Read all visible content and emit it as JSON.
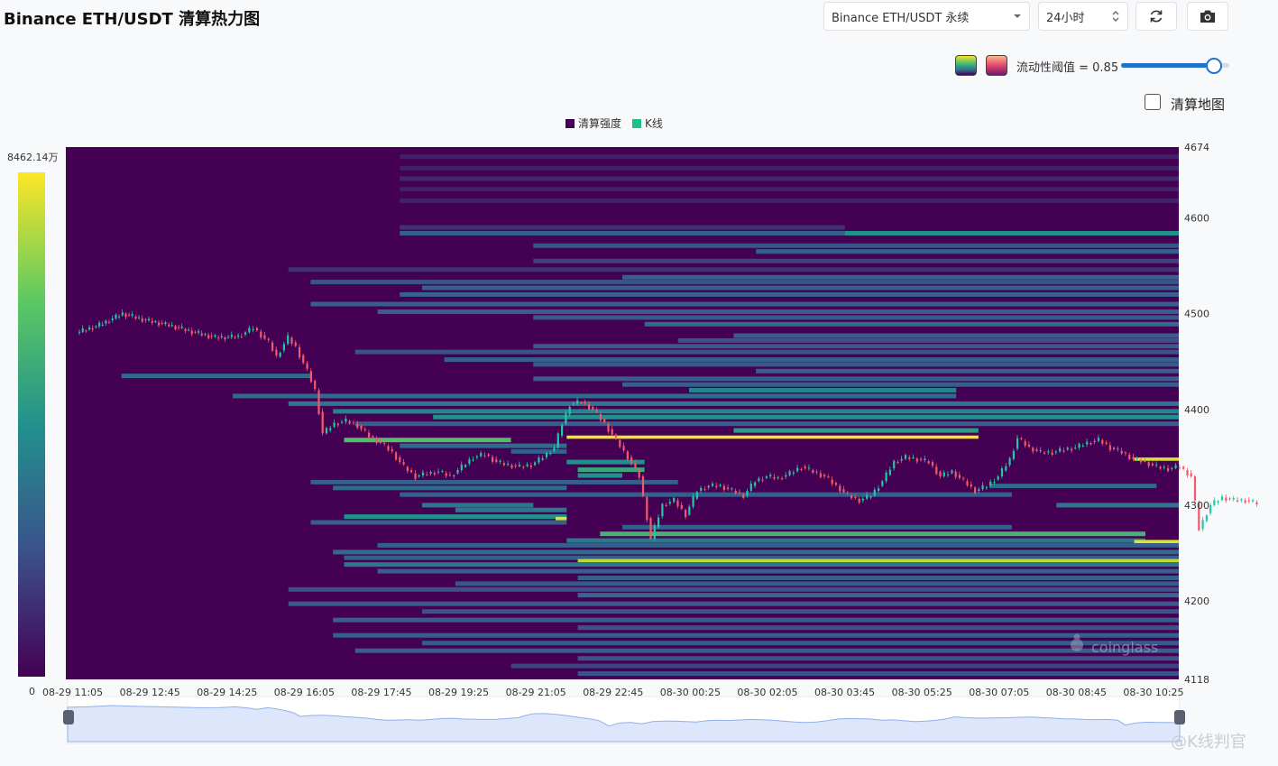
{
  "header": {
    "title": "Binance ETH/USDT 清算热力图"
  },
  "controls": {
    "symbol": "Binance ETH/USDT 永续",
    "period": "24小时",
    "refresh_icon": "refresh-icon",
    "camera_icon": "camera-icon",
    "palette_icons": [
      "viridis-palette-icon",
      "magma-palette-icon"
    ],
    "threshold_label": "流动性阈值 = 0.85",
    "threshold_value": 0.85,
    "threshold_min": 0,
    "threshold_max": 1,
    "liq_map_label": "清算地图",
    "liq_map_checked": false
  },
  "watermark": {
    "text": "coinglass"
  },
  "corner_watermark": {
    "text": "@K线判官"
  },
  "colors": {
    "background": "#440154",
    "candle_up": "#26c6a6",
    "candle_down": "#ef5b6b",
    "navigator_fill": "#dde6fb",
    "navigator_line": "#8fb1ec"
  },
  "chart_data": {
    "type": "heatmap",
    "legend": [
      "清算强度",
      "K线"
    ],
    "colorbar": {
      "max_label": "8462.14万",
      "min_label": "0"
    },
    "y_axis": {
      "ticks": [
        4674,
        4600,
        4500,
        4400,
        4300,
        4200,
        4118
      ],
      "min": 4118,
      "max": 4674
    },
    "x_axis": {
      "ticks": [
        "08-29 11:05",
        "08-29 12:45",
        "08-29 14:25",
        "08-29 16:05",
        "08-29 17:45",
        "08-29 19:25",
        "08-29 21:05",
        "08-29 22:45",
        "08-30 00:25",
        "08-30 02:05",
        "08-30 03:45",
        "08-30 05:25",
        "08-30 07:05",
        "08-30 08:45",
        "08-30 10:25"
      ]
    },
    "price_path": [
      [
        0,
        4480
      ],
      [
        0.3,
        4488
      ],
      [
        0.6,
        4500
      ],
      [
        0.9,
        4493
      ],
      [
        1.2,
        4488
      ],
      [
        1.5,
        4481
      ],
      [
        1.8,
        4475
      ],
      [
        2.1,
        4476
      ],
      [
        2.3,
        4485
      ],
      [
        2.5,
        4470
      ],
      [
        2.6,
        4455
      ],
      [
        2.75,
        4475
      ],
      [
        2.85,
        4465
      ],
      [
        3.0,
        4440
      ],
      [
        3.1,
        4420
      ],
      [
        3.2,
        4375
      ],
      [
        3.35,
        4385
      ],
      [
        3.5,
        4388
      ],
      [
        3.65,
        4383
      ],
      [
        3.8,
        4372
      ],
      [
        3.95,
        4365
      ],
      [
        4.1,
        4355
      ],
      [
        4.25,
        4340
      ],
      [
        4.4,
        4330
      ],
      [
        4.55,
        4333
      ],
      [
        4.7,
        4335
      ],
      [
        4.85,
        4330
      ],
      [
        5.0,
        4340
      ],
      [
        5.15,
        4350
      ],
      [
        5.3,
        4353
      ],
      [
        5.45,
        4345
      ],
      [
        5.6,
        4342
      ],
      [
        5.75,
        4340
      ],
      [
        5.9,
        4342
      ],
      [
        6.05,
        4350
      ],
      [
        6.2,
        4360
      ],
      [
        6.3,
        4385
      ],
      [
        6.4,
        4405
      ],
      [
        6.55,
        4408
      ],
      [
        6.7,
        4400
      ],
      [
        6.85,
        4385
      ],
      [
        7.0,
        4368
      ],
      [
        7.15,
        4350
      ],
      [
        7.3,
        4330
      ],
      [
        7.45,
        4265
      ],
      [
        7.6,
        4300
      ],
      [
        7.75,
        4305
      ],
      [
        7.9,
        4290
      ],
      [
        8.05,
        4315
      ],
      [
        8.2,
        4320
      ],
      [
        8.35,
        4320
      ],
      [
        8.5,
        4315
      ],
      [
        8.65,
        4310
      ],
      [
        8.8,
        4325
      ],
      [
        8.95,
        4330
      ],
      [
        9.1,
        4328
      ],
      [
        9.25,
        4333
      ],
      [
        9.4,
        4340
      ],
      [
        9.55,
        4335
      ],
      [
        9.7,
        4330
      ],
      [
        9.85,
        4320
      ],
      [
        10.0,
        4310
      ],
      [
        10.15,
        4305
      ],
      [
        10.3,
        4310
      ],
      [
        10.45,
        4325
      ],
      [
        10.6,
        4345
      ],
      [
        10.75,
        4350
      ],
      [
        10.9,
        4348
      ],
      [
        11.05,
        4345
      ],
      [
        11.2,
        4330
      ],
      [
        11.35,
        4335
      ],
      [
        11.5,
        4325
      ],
      [
        11.65,
        4315
      ],
      [
        11.8,
        4320
      ],
      [
        11.95,
        4330
      ],
      [
        12.1,
        4348
      ],
      [
        12.2,
        4370
      ],
      [
        12.35,
        4360
      ],
      [
        12.5,
        4355
      ],
      [
        12.65,
        4355
      ],
      [
        12.8,
        4358
      ],
      [
        12.95,
        4360
      ],
      [
        13.1,
        4365
      ],
      [
        13.25,
        4368
      ],
      [
        13.4,
        4360
      ],
      [
        13.55,
        4355
      ],
      [
        13.7,
        4348
      ],
      [
        13.85,
        4345
      ],
      [
        14.0,
        4340
      ],
      [
        14.15,
        4338
      ],
      [
        14.3,
        4340
      ],
      [
        14.45,
        4330
      ],
      [
        14.55,
        4275
      ],
      [
        14.7,
        4300
      ],
      [
        14.85,
        4308
      ],
      [
        15.0,
        4305
      ],
      [
        15.15,
        4305
      ],
      [
        15.3,
        4302
      ]
    ],
    "bands": [
      [
        4664,
        0.3,
        1.0,
        0.1
      ],
      [
        4652,
        0.3,
        1.0,
        0.1
      ],
      [
        4641,
        0.3,
        1.0,
        0.12
      ],
      [
        4630,
        0.3,
        1.0,
        0.1
      ],
      [
        4618,
        0.3,
        1.0,
        0.1
      ],
      [
        4590,
        0.3,
        0.7,
        0.15
      ],
      [
        4584,
        0.3,
        1.0,
        0.3
      ],
      [
        4584,
        0.7,
        1.0,
        0.5
      ],
      [
        4571,
        0.42,
        1.0,
        0.25
      ],
      [
        4565,
        0.62,
        1.0,
        0.3
      ],
      [
        4555,
        0.42,
        1.0,
        0.2
      ],
      [
        4546,
        0.2,
        1.0,
        0.15
      ],
      [
        4538,
        0.5,
        1.0,
        0.3
      ],
      [
        4533,
        0.22,
        1.0,
        0.25
      ],
      [
        4527,
        0.32,
        1.0,
        0.3
      ],
      [
        4520,
        0.3,
        1.0,
        0.32
      ],
      [
        4510,
        0.22,
        1.0,
        0.3
      ],
      [
        4502,
        0.28,
        1.0,
        0.3
      ],
      [
        4496,
        0.42,
        1.0,
        0.28
      ],
      [
        4489,
        0.52,
        1.0,
        0.35
      ],
      [
        4477,
        0.6,
        1.0,
        0.3
      ],
      [
        4472,
        0.55,
        1.0,
        0.25
      ],
      [
        4466,
        0.42,
        1.0,
        0.28
      ],
      [
        4460,
        0.26,
        1.0,
        0.25
      ],
      [
        4452,
        0.34,
        1.0,
        0.3
      ],
      [
        4447,
        0.42,
        1.0,
        0.28
      ],
      [
        4440,
        0.62,
        1.0,
        0.3
      ],
      [
        4435,
        0.05,
        0.22,
        0.35
      ],
      [
        4432,
        0.42,
        1.0,
        0.3
      ],
      [
        4426,
        0.5,
        1.0,
        0.3
      ],
      [
        4420,
        0.56,
        0.8,
        0.45
      ],
      [
        4414,
        0.15,
        0.8,
        0.35
      ],
      [
        4406,
        0.2,
        1.0,
        0.4
      ],
      [
        4398,
        0.24,
        1.0,
        0.45
      ],
      [
        4392,
        0.33,
        1.0,
        0.5
      ],
      [
        4385,
        0.26,
        1.0,
        0.3
      ],
      [
        4378,
        0.6,
        0.82,
        0.55
      ],
      [
        4371,
        0.45,
        0.82,
        0.98
      ],
      [
        4368,
        0.25,
        0.4,
        0.7
      ],
      [
        4362,
        0.3,
        0.45,
        0.35
      ],
      [
        4356,
        0.4,
        0.45,
        0.3
      ],
      [
        4345,
        0.45,
        0.52,
        0.5
      ],
      [
        4337,
        0.46,
        0.52,
        0.6
      ],
      [
        4331,
        0.46,
        0.5,
        0.5
      ],
      [
        4324,
        0.22,
        0.55,
        0.3
      ],
      [
        4318,
        0.24,
        0.45,
        0.35
      ],
      [
        4311,
        0.3,
        0.85,
        0.3
      ],
      [
        4300,
        0.32,
        0.42,
        0.4
      ],
      [
        4295,
        0.35,
        0.45,
        0.4
      ],
      [
        4288,
        0.25,
        0.45,
        0.5
      ],
      [
        4286,
        0.44,
        0.45,
        0.95
      ],
      [
        4282,
        0.22,
        0.45,
        0.3
      ],
      [
        4277,
        0.5,
        0.85,
        0.3
      ],
      [
        4270,
        0.48,
        0.97,
        0.65
      ],
      [
        4263,
        0.45,
        0.97,
        0.4
      ],
      [
        4258,
        0.28,
        1.0,
        0.3
      ],
      [
        4251,
        0.24,
        1.0,
        0.35
      ],
      [
        4245,
        0.25,
        1.0,
        0.3
      ],
      [
        4242,
        0.46,
        1.0,
        0.9
      ],
      [
        4238,
        0.25,
        1.0,
        0.4
      ],
      [
        4231,
        0.28,
        1.0,
        0.3
      ],
      [
        4224,
        0.46,
        1.0,
        0.3
      ],
      [
        4218,
        0.35,
        1.0,
        0.28
      ],
      [
        4212,
        0.2,
        1.0,
        0.25
      ],
      [
        4206,
        0.46,
        1.0,
        0.35
      ],
      [
        4197,
        0.2,
        1.0,
        0.28
      ],
      [
        4189,
        0.32,
        1.0,
        0.25
      ],
      [
        4180,
        0.24,
        1.0,
        0.3
      ],
      [
        4172,
        0.46,
        1.0,
        0.25
      ],
      [
        4164,
        0.24,
        1.0,
        0.3
      ],
      [
        4156,
        0.32,
        1.0,
        0.28
      ],
      [
        4148,
        0.26,
        1.0,
        0.3
      ],
      [
        4140,
        0.46,
        1.0,
        0.25
      ],
      [
        4132,
        0.4,
        1.0,
        0.2
      ],
      [
        4124,
        0.46,
        1.0,
        0.25
      ],
      [
        4300,
        0.89,
        1.0,
        0.4
      ],
      [
        4348,
        0.96,
        1.0,
        0.95
      ],
      [
        4262,
        0.96,
        1.0,
        0.95
      ],
      [
        4320,
        0.83,
        0.98,
        0.35
      ]
    ]
  }
}
